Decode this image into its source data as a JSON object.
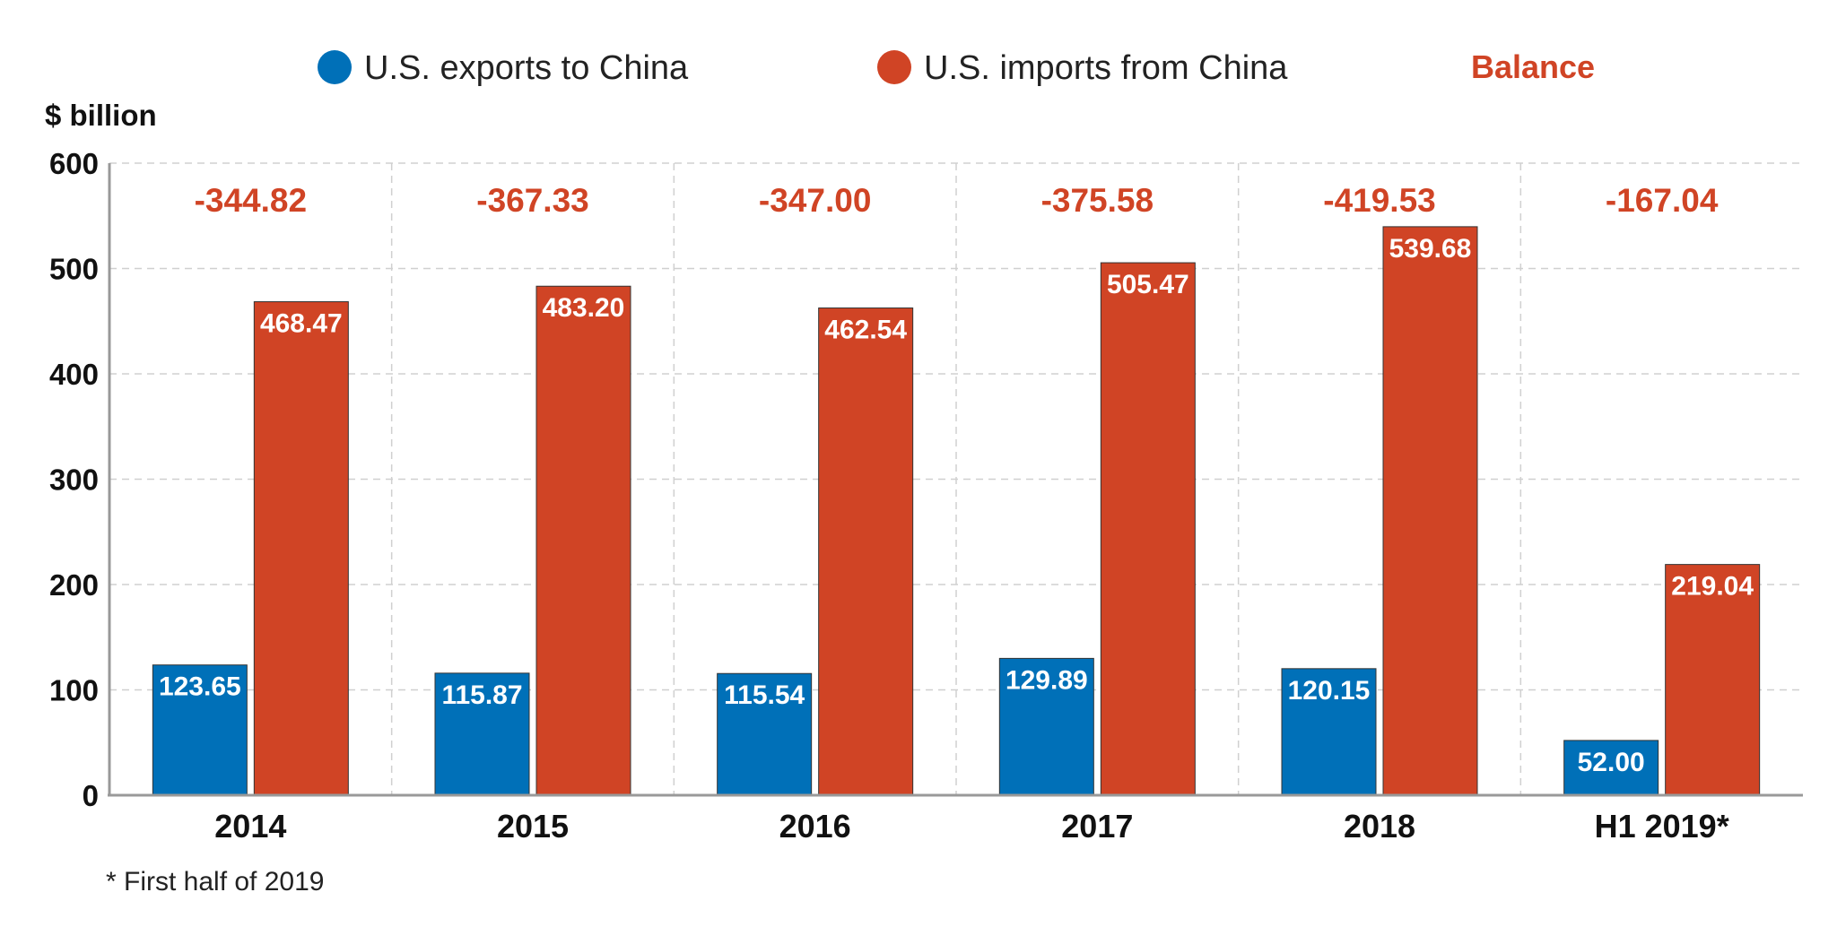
{
  "chart_data": {
    "type": "bar",
    "unit_label": "$ billion",
    "categories": [
      "2014",
      "2015",
      "2016",
      "2017",
      "2018",
      "H1 2019*"
    ],
    "series": [
      {
        "name": "U.S. exports to China",
        "color": "#0070B8",
        "values": [
          123.65,
          115.87,
          115.54,
          129.89,
          120.15,
          52.0
        ],
        "labels": [
          "123.65",
          "115.87",
          "115.54",
          "129.89",
          "120.15",
          "52.00"
        ]
      },
      {
        "name": "U.S. imports from China",
        "color": "#D04425",
        "values": [
          468.47,
          483.2,
          462.54,
          505.47,
          539.68,
          219.04
        ],
        "labels": [
          "468.47",
          "483.20",
          "462.54",
          "505.47",
          "539.68",
          "219.04"
        ]
      }
    ],
    "balance": {
      "name": "Balance",
      "color": "#D04425",
      "values": [
        -344.82,
        -367.33,
        -347.0,
        -375.58,
        -419.53,
        -167.04
      ],
      "labels": [
        "-344.82",
        "-367.33",
        "-347.00",
        "-375.58",
        "-419.53",
        "-167.04"
      ]
    },
    "ylim": [
      0,
      600
    ],
    "yticks": [
      "0",
      "100",
      "200",
      "300",
      "400",
      "500",
      "600"
    ],
    "grid": true,
    "legend_position": "top",
    "footnote": "* First half of 2019"
  }
}
